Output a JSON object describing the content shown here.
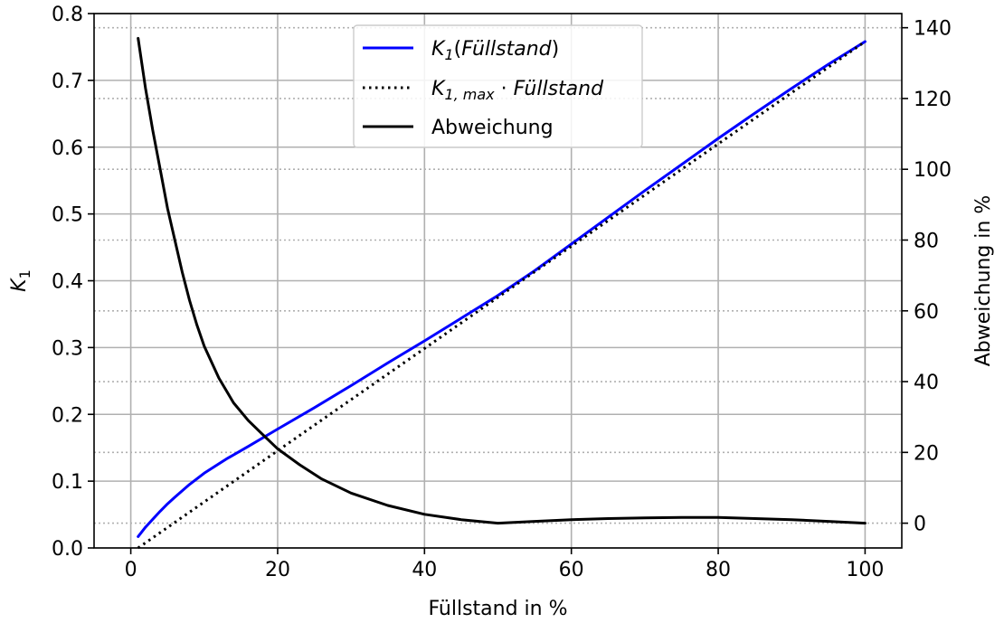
{
  "chart_data": {
    "type": "line",
    "xlabel": "Füllstand in %",
    "ylabel_left": "K1",
    "ylabel_right": "Abweichung in %",
    "xlim": [
      -5,
      105
    ],
    "ylim_left": [
      0.0,
      0.8
    ],
    "ylim_right": [
      -7,
      144
    ],
    "x_ticks": [
      0,
      20,
      40,
      60,
      80,
      100
    ],
    "x_tick_labels": [
      "0",
      "20",
      "40",
      "60",
      "80",
      "100"
    ],
    "y_left_ticks": [
      0.0,
      0.1,
      0.2,
      0.3,
      0.4,
      0.5,
      0.6,
      0.7,
      0.8
    ],
    "y_left_tick_labels": [
      "0.0",
      "0.1",
      "0.2",
      "0.3",
      "0.4",
      "0.5",
      "0.6",
      "0.7",
      "0.8"
    ],
    "y_right_ticks": [
      0,
      20,
      40,
      60,
      80,
      100,
      120,
      140
    ],
    "y_right_tick_labels": [
      "0",
      "20",
      "40",
      "60",
      "80",
      "100",
      "120",
      "140"
    ],
    "grid": true,
    "right_grid_style": "dotted",
    "legend": {
      "position": "top-center",
      "entries": [
        {
          "pre": "K",
          "sub": "1",
          "mid": "(",
          "ital": "Füllstand",
          "post": ")"
        },
        {
          "pre": "K",
          "sub": "1, max",
          "mid": " · ",
          "ital": "Füllstand",
          "post": ""
        },
        {
          "pre": "",
          "sub": "",
          "mid": "Abweichung",
          "ital": "",
          "post": ""
        }
      ]
    },
    "series": [
      {
        "key": "k1",
        "axis": "left",
        "color": "#0000ff",
        "style": "solid",
        "x": [
          1,
          2,
          3,
          4,
          5,
          6,
          8,
          10,
          13,
          16,
          20,
          25,
          30,
          35,
          40,
          45,
          50,
          55,
          60,
          65,
          70,
          75,
          80,
          85,
          90,
          95,
          100
        ],
        "y": [
          0.017,
          0.031,
          0.043,
          0.055,
          0.066,
          0.076,
          0.095,
          0.112,
          0.133,
          0.152,
          0.178,
          0.21,
          0.243,
          0.277,
          0.31,
          0.344,
          0.378,
          0.415,
          0.455,
          0.495,
          0.535,
          0.574,
          0.613,
          0.651,
          0.688,
          0.724,
          0.758
        ]
      },
      {
        "key": "k1max",
        "axis": "left",
        "color": "#000000",
        "style": "dotted",
        "x": [
          1,
          100
        ],
        "y": [
          0.0,
          0.758
        ]
      },
      {
        "key": "abweichung",
        "axis": "right",
        "color": "#000000",
        "style": "solid",
        "x": [
          1,
          2,
          3,
          4,
          5,
          6,
          7,
          8,
          9,
          10,
          12,
          14,
          16,
          18,
          20,
          23,
          26,
          30,
          35,
          40,
          45,
          50,
          55,
          60,
          65,
          70,
          75,
          80,
          85,
          90,
          95,
          100
        ],
        "y": [
          137,
          123,
          111,
          100,
          89,
          80,
          71,
          63,
          56,
          50,
          41,
          34,
          29,
          25,
          21,
          16.5,
          12.5,
          8.5,
          5,
          2.5,
          1,
          0,
          0.5,
          1,
          1.3,
          1.5,
          1.6,
          1.6,
          1.3,
          1,
          0.5,
          0
        ]
      }
    ]
  }
}
